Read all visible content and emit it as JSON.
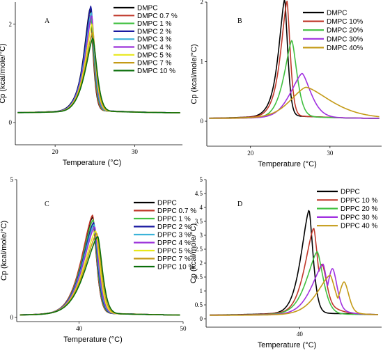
{
  "figure": {
    "panels": [
      "A",
      "B",
      "C",
      "D"
    ]
  },
  "chart_data": [
    {
      "type": "line",
      "panel": "A",
      "xlabel": "Temperature (°C)",
      "ylabel": "Cp (kcal/mole/°C)",
      "xlim": [
        15,
        36
      ],
      "ylim": [
        -0.45,
        2.45
      ],
      "xticks": [
        20,
        30
      ],
      "yticks": [
        0,
        2
      ],
      "legend_position": "top-right",
      "series": [
        {
          "name": "DMPC",
          "color": "#000000",
          "peak": 24.4,
          "height": 2.22,
          "left": 1.05,
          "right": 0.55,
          "shoulder": 0.55
        },
        {
          "name": "DMPC 0.7 %",
          "color": "#c0392b",
          "peak": 24.45,
          "height": 2.1,
          "left": 1.05,
          "right": 0.55,
          "shoulder": 0.55
        },
        {
          "name": "DMPC 1 %",
          "color": "#40c040",
          "peak": 24.5,
          "height": 2.05,
          "left": 1.08,
          "right": 0.58,
          "shoulder": 0.52
        },
        {
          "name": "DMPC 2 %",
          "color": "#1a1aa0",
          "peak": 24.5,
          "height": 2.28,
          "left": 1.1,
          "right": 0.6,
          "shoulder": 0.5
        },
        {
          "name": "DMPC 3 %",
          "color": "#3bb3d9",
          "peak": 24.55,
          "height": 2.14,
          "left": 1.12,
          "right": 0.6,
          "shoulder": 0.5
        },
        {
          "name": "DMPC 4 %",
          "color": "#9b30d9",
          "peak": 24.6,
          "height": 2.08,
          "left": 1.15,
          "right": 0.62,
          "shoulder": 0.48
        },
        {
          "name": "DMPC 5 %",
          "color": "#e8e81a",
          "peak": 24.65,
          "height": 1.9,
          "left": 1.2,
          "right": 0.65,
          "shoulder": 0.45
        },
        {
          "name": "DMPC 7 %",
          "color": "#c49a16",
          "peak": 24.7,
          "height": 1.72,
          "left": 1.25,
          "right": 0.7,
          "shoulder": 0.42
        },
        {
          "name": "DMPC 10 %",
          "color": "#0a6e0a",
          "peak": 24.75,
          "height": 1.6,
          "left": 1.3,
          "right": 0.75,
          "shoulder": 0.4
        }
      ]
    },
    {
      "type": "line",
      "panel": "B",
      "xlabel": "Temperature (°C)",
      "ylabel": "Cp (kcal/mole/°C)",
      "xlim": [
        14.5,
        36.5
      ],
      "ylim": [
        -0.42,
        2.0
      ],
      "xticks": [
        20,
        30
      ],
      "yticks": [
        0,
        1,
        2
      ],
      "legend_position": "top-right",
      "series": [
        {
          "name": "DMPC",
          "color": "#000000",
          "peak": 24.3,
          "height": 1.98,
          "left": 1.05,
          "right": 0.55,
          "shoulder": 0.45
        },
        {
          "name": "DMPC 10%",
          "color": "#c0392b",
          "peak": 24.6,
          "height": 1.95,
          "left": 1.1,
          "right": 0.58,
          "shoulder": 0.42
        },
        {
          "name": "DMPC 20%",
          "color": "#40c040",
          "peak": 25.2,
          "height": 1.3,
          "left": 1.3,
          "right": 0.95,
          "shoulder": 0.35
        },
        {
          "name": "DMPC 30%",
          "color": "#a030e0",
          "peak": 26.5,
          "height": 0.75,
          "left": 2.0,
          "right": 1.6,
          "shoulder": 0.3
        },
        {
          "name": "DMPC 40%",
          "color": "#c49a16",
          "peak": 27.0,
          "height": 0.52,
          "left": 2.8,
          "right": 4.5,
          "shoulder": 0.25
        }
      ]
    },
    {
      "type": "line",
      "panel": "C",
      "xlabel": "Temperature (°C)",
      "ylabel": "Cp (kcal/mole/°C)",
      "xlim": [
        34,
        50
      ],
      "ylim": [
        -0.15,
        5.0
      ],
      "xticks": [
        40,
        50
      ],
      "yticks": [
        0,
        5
      ],
      "legend_position": "top-right",
      "series": [
        {
          "name": "DPPC",
          "color": "#000000",
          "peak": 41.3,
          "height": 3.55,
          "left": 1.55,
          "right": 0.55,
          "shoulder": 0.0
        },
        {
          "name": "DPPC 0.7 %",
          "color": "#c0392b",
          "peak": 41.3,
          "height": 3.62,
          "left": 1.55,
          "right": 0.55,
          "shoulder": 0.0
        },
        {
          "name": "DPPC 1 %",
          "color": "#40c040",
          "peak": 41.35,
          "height": 3.45,
          "left": 1.57,
          "right": 0.56,
          "shoulder": 0.0
        },
        {
          "name": "DPPC 2 %",
          "color": "#1a1aa0",
          "peak": 41.4,
          "height": 3.35,
          "left": 1.6,
          "right": 0.57,
          "shoulder": 0.0
        },
        {
          "name": "DPPC 3 %",
          "color": "#3bb3d9",
          "peak": 41.45,
          "height": 3.28,
          "left": 1.62,
          "right": 0.58,
          "shoulder": 0.0
        },
        {
          "name": "DPPC 4 %",
          "color": "#9b30d9",
          "peak": 41.5,
          "height": 3.2,
          "left": 1.65,
          "right": 0.59,
          "shoulder": 0.0
        },
        {
          "name": "DPPC 5 %",
          "color": "#e8e81a",
          "peak": 41.6,
          "height": 3.05,
          "left": 1.7,
          "right": 0.6,
          "shoulder": 0.0
        },
        {
          "name": "DPPC 7 %",
          "color": "#c49a16",
          "peak": 41.7,
          "height": 2.95,
          "left": 1.75,
          "right": 0.62,
          "shoulder": 0.0
        },
        {
          "name": "DPPC 10 %",
          "color": "#0a6e0a",
          "peak": 41.8,
          "height": 2.85,
          "left": 1.8,
          "right": 0.64,
          "shoulder": 0.0
        }
      ]
    },
    {
      "type": "line",
      "panel": "D",
      "xlabel": "Temperature (°C)",
      "ylabel": "Cp (kcal/mole/°C)",
      "xlim": [
        32,
        47
      ],
      "ylim": [
        -0.3,
        5.0
      ],
      "xticks": [
        40
      ],
      "yticks": [
        0,
        0.5,
        1,
        1.5,
        2,
        2.5,
        3,
        3.5,
        4,
        4.5,
        5
      ],
      "legend_position": "top-right",
      "series": [
        {
          "name": "DPPC",
          "color": "#000000",
          "peak": 40.8,
          "height": 3.8,
          "left": 1.0,
          "right": 0.5,
          "second_peak": null,
          "second_height": 0
        },
        {
          "name": "DPPC 10 %",
          "color": "#c0392b",
          "peak": 41.2,
          "height": 3.15,
          "left": 1.1,
          "right": 0.55,
          "second_peak": 41.9,
          "second_height": 1.4
        },
        {
          "name": "DPPC 20 %",
          "color": "#40c040",
          "peak": 41.5,
          "height": 2.3,
          "left": 1.3,
          "right": 0.75,
          "second_peak": null,
          "second_height": 0
        },
        {
          "name": "DPPC 30 %",
          "color": "#a030e0",
          "peak": 42.0,
          "height": 1.85,
          "left": 1.4,
          "right": 0.55,
          "second_peak": 42.8,
          "second_height": 1.45
        },
        {
          "name": "DPPC 40 %",
          "color": "#c49a16",
          "peak": 42.6,
          "height": 1.45,
          "left": 1.6,
          "right": 0.7,
          "second_peak": 43.8,
          "second_height": 1.05
        }
      ]
    }
  ]
}
